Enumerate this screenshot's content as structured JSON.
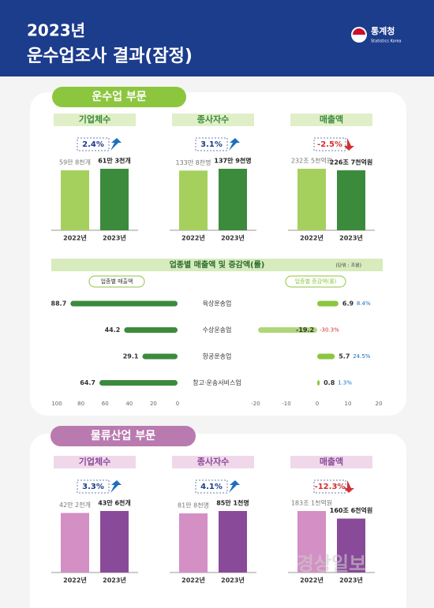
{
  "header": {
    "year_title": "2023년",
    "title": "운수업조사 결과(잠정)",
    "logo": "통계청",
    "logo_sub": "Statistics Korea"
  },
  "sections": [
    {
      "title": "운수업 부문"
    },
    {
      "title": "물류산업 부문"
    }
  ],
  "watermark": "경상일보",
  "chart_data": [
    {
      "type": "bar",
      "title": "기업체수",
      "change_label": "2.4%",
      "categories": [
        "2022년",
        "2023년"
      ],
      "values": [
        59.8,
        61.3
      ],
      "value_labels": [
        "59만 8천개",
        "61만 3천개"
      ],
      "colors": [
        "#a6d05e",
        "#3c8a3c"
      ]
    },
    {
      "type": "bar",
      "title": "종사자수",
      "change_label": "3.1%",
      "categories": [
        "2022년",
        "2023년"
      ],
      "values": [
        133.8,
        137.9
      ],
      "value_labels": [
        "133만 8천명",
        "137만 9천명"
      ],
      "colors": [
        "#a6d05e",
        "#3c8a3c"
      ]
    },
    {
      "type": "bar",
      "title": "매출액",
      "change_label": "-2.5%",
      "categories": [
        "2022년",
        "2023년"
      ],
      "values": [
        232.5,
        226.7
      ],
      "value_labels": [
        "232조 5천억원",
        "226조 7천억원"
      ],
      "colors": [
        "#a6d05e",
        "#3c8a3c"
      ]
    },
    {
      "type": "hbar-left",
      "title": "업종별 매출액 및 증감액(률)",
      "unit": "(단위 : 조원)",
      "label": "업종별 매출액",
      "categories": [
        "육상운송업",
        "수상운송업",
        "항공운송업",
        "창고·운송서비스업"
      ],
      "values": [
        88.7,
        44.2,
        29.1,
        64.7
      ],
      "xlim": [
        100,
        0
      ],
      "xticks": [
        100,
        80,
        60,
        40,
        20,
        0
      ],
      "color": "#3c8a3c"
    },
    {
      "type": "hbar-right",
      "label": "업종별 증감액(률)",
      "values": [
        6.9,
        -19.2,
        5.7,
        0.8
      ],
      "rate_labels": [
        "8.4%",
        "-30.3%",
        "24.5%",
        "1.3%"
      ],
      "xlim": [
        -20,
        20
      ],
      "xticks": [
        -20,
        -10,
        0,
        10,
        20
      ],
      "color": "#8cc63f"
    },
    {
      "type": "bar",
      "title": "기업체수",
      "change_label": "3.3%",
      "categories": [
        "2022년",
        "2023년"
      ],
      "values": [
        42.2,
        43.6
      ],
      "value_labels": [
        "42만 2천개",
        "43만 6천개"
      ],
      "colors": [
        "#d48fc4",
        "#8a4a9a"
      ]
    },
    {
      "type": "bar",
      "title": "종사자수",
      "change_label": "4.1%",
      "categories": [
        "2022년",
        "2023년"
      ],
      "values": [
        81.8,
        85.1
      ],
      "value_labels": [
        "81만 8천명",
        "85만 1천명"
      ],
      "colors": [
        "#d48fc4",
        "#8a4a9a"
      ]
    },
    {
      "type": "bar",
      "title": "매출액",
      "change_label": "-12.3%",
      "categories": [
        "2022년",
        "2023년"
      ],
      "values": [
        183.1,
        160.6
      ],
      "value_labels": [
        "183조 1천억원",
        "160조 6천억원"
      ],
      "colors": [
        "#d48fc4",
        "#8a4a9a"
      ]
    }
  ]
}
